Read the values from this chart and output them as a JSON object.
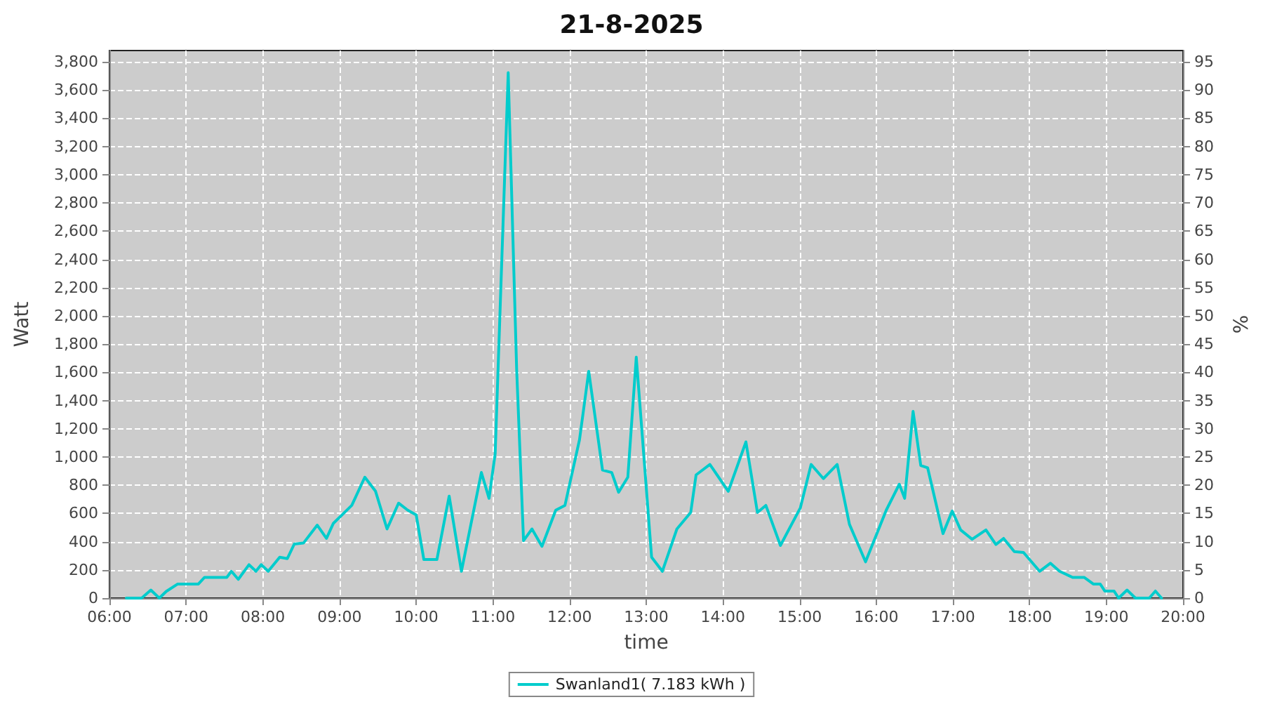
{
  "chart_data": {
    "type": "line",
    "title": "21-8-2025",
    "xlabel": "time",
    "ylabel": "Watt",
    "y2label": "%",
    "x": [
      6.22,
      6.42,
      6.54,
      6.65,
      6.74,
      6.89,
      7.16,
      7.24,
      7.53,
      7.59,
      7.68,
      7.82,
      7.91,
      7.98,
      8.07,
      8.22,
      8.32,
      8.41,
      8.53,
      8.71,
      8.83,
      8.92,
      9.16,
      9.33,
      9.47,
      9.62,
      9.77,
      9.89,
      10.0,
      10.1,
      10.27,
      10.43,
      10.59,
      10.85,
      10.95,
      11.03,
      11.2,
      11.31,
      11.4,
      11.51,
      11.64,
      11.82,
      11.94,
      12.13,
      12.25,
      12.43,
      12.55,
      12.64,
      12.76,
      12.87,
      13.07,
      13.21,
      13.4,
      13.58,
      13.65,
      13.83,
      14.07,
      14.3,
      14.45,
      14.56,
      14.75,
      15.01,
      15.15,
      15.31,
      15.49,
      15.65,
      15.86,
      16.13,
      16.3,
      16.37,
      16.48,
      16.58,
      16.67,
      16.77,
      16.87,
      16.99,
      17.1,
      17.25,
      17.43,
      17.56,
      17.66,
      17.8,
      17.92,
      18.13,
      18.27,
      18.39,
      18.56,
      18.71,
      18.83,
      18.92,
      18.98,
      19.1,
      19.16,
      19.27,
      19.38,
      19.56,
      19.64,
      19.72
    ],
    "series": [
      {
        "name": "Swanland1( 7.183 kWh )",
        "color": "#00cccc",
        "values": [
          0,
          0,
          57,
          0,
          47,
          100,
          100,
          147,
          147,
          190,
          133,
          237,
          190,
          237,
          190,
          290,
          280,
          383,
          390,
          517,
          423,
          530,
          657,
          857,
          757,
          490,
          673,
          623,
          590,
          273,
          273,
          723,
          190,
          890,
          707,
          1023,
          3723,
          1623,
          407,
          490,
          367,
          623,
          657,
          1123,
          1607,
          907,
          890,
          750,
          857,
          1707,
          290,
          190,
          490,
          607,
          873,
          947,
          757,
          1107,
          607,
          657,
          373,
          640,
          947,
          847,
          947,
          523,
          257,
          623,
          807,
          707,
          1323,
          940,
          923,
          690,
          457,
          617,
          483,
          417,
          483,
          380,
          423,
          330,
          323,
          190,
          247,
          190,
          147,
          147,
          100,
          100,
          50,
          50,
          0,
          57,
          0,
          0,
          50,
          0
        ]
      }
    ],
    "xlim": [
      6,
      20
    ],
    "xticks": [
      {
        "value": 6,
        "label": "06:00"
      },
      {
        "value": 7,
        "label": "07:00"
      },
      {
        "value": 8,
        "label": "08:00"
      },
      {
        "value": 9,
        "label": "09:00"
      },
      {
        "value": 10,
        "label": "10:00"
      },
      {
        "value": 11,
        "label": "11:00"
      },
      {
        "value": 12,
        "label": "12:00"
      },
      {
        "value": 13,
        "label": "13:00"
      },
      {
        "value": 14,
        "label": "14:00"
      },
      {
        "value": 15,
        "label": "15:00"
      },
      {
        "value": 16,
        "label": "16:00"
      },
      {
        "value": 17,
        "label": "17:00"
      },
      {
        "value": 18,
        "label": "18:00"
      },
      {
        "value": 19,
        "label": "19:00"
      },
      {
        "value": 20,
        "label": "20:00"
      }
    ],
    "ylim": [
      0,
      3880
    ],
    "yticks": [
      0,
      200,
      400,
      600,
      800,
      {
        "value": 1000,
        "label": "1,000"
      },
      {
        "value": 1200,
        "label": "1,200"
      },
      {
        "value": 1400,
        "label": "1,400"
      },
      {
        "value": 1600,
        "label": "1,600"
      },
      {
        "value": 1800,
        "label": "1,800"
      },
      {
        "value": 2000,
        "label": "2,000"
      },
      {
        "value": 2200,
        "label": "2,200"
      },
      {
        "value": 2400,
        "label": "2,400"
      },
      {
        "value": 2600,
        "label": "2,600"
      },
      {
        "value": 2800,
        "label": "2,800"
      },
      {
        "value": 3000,
        "label": "3,000"
      },
      {
        "value": 3200,
        "label": "3,200"
      },
      {
        "value": 3400,
        "label": "3,400"
      },
      {
        "value": 3600,
        "label": "3,600"
      },
      {
        "value": 3800,
        "label": "3,800"
      }
    ],
    "y2lim": [
      0,
      97
    ],
    "y2ticks": [
      0,
      5,
      10,
      15,
      20,
      25,
      30,
      35,
      40,
      45,
      50,
      55,
      60,
      65,
      70,
      75,
      80,
      85,
      90,
      95
    ],
    "grid": true,
    "legend": "bottom",
    "marker": "none",
    "line_style": "solid"
  }
}
